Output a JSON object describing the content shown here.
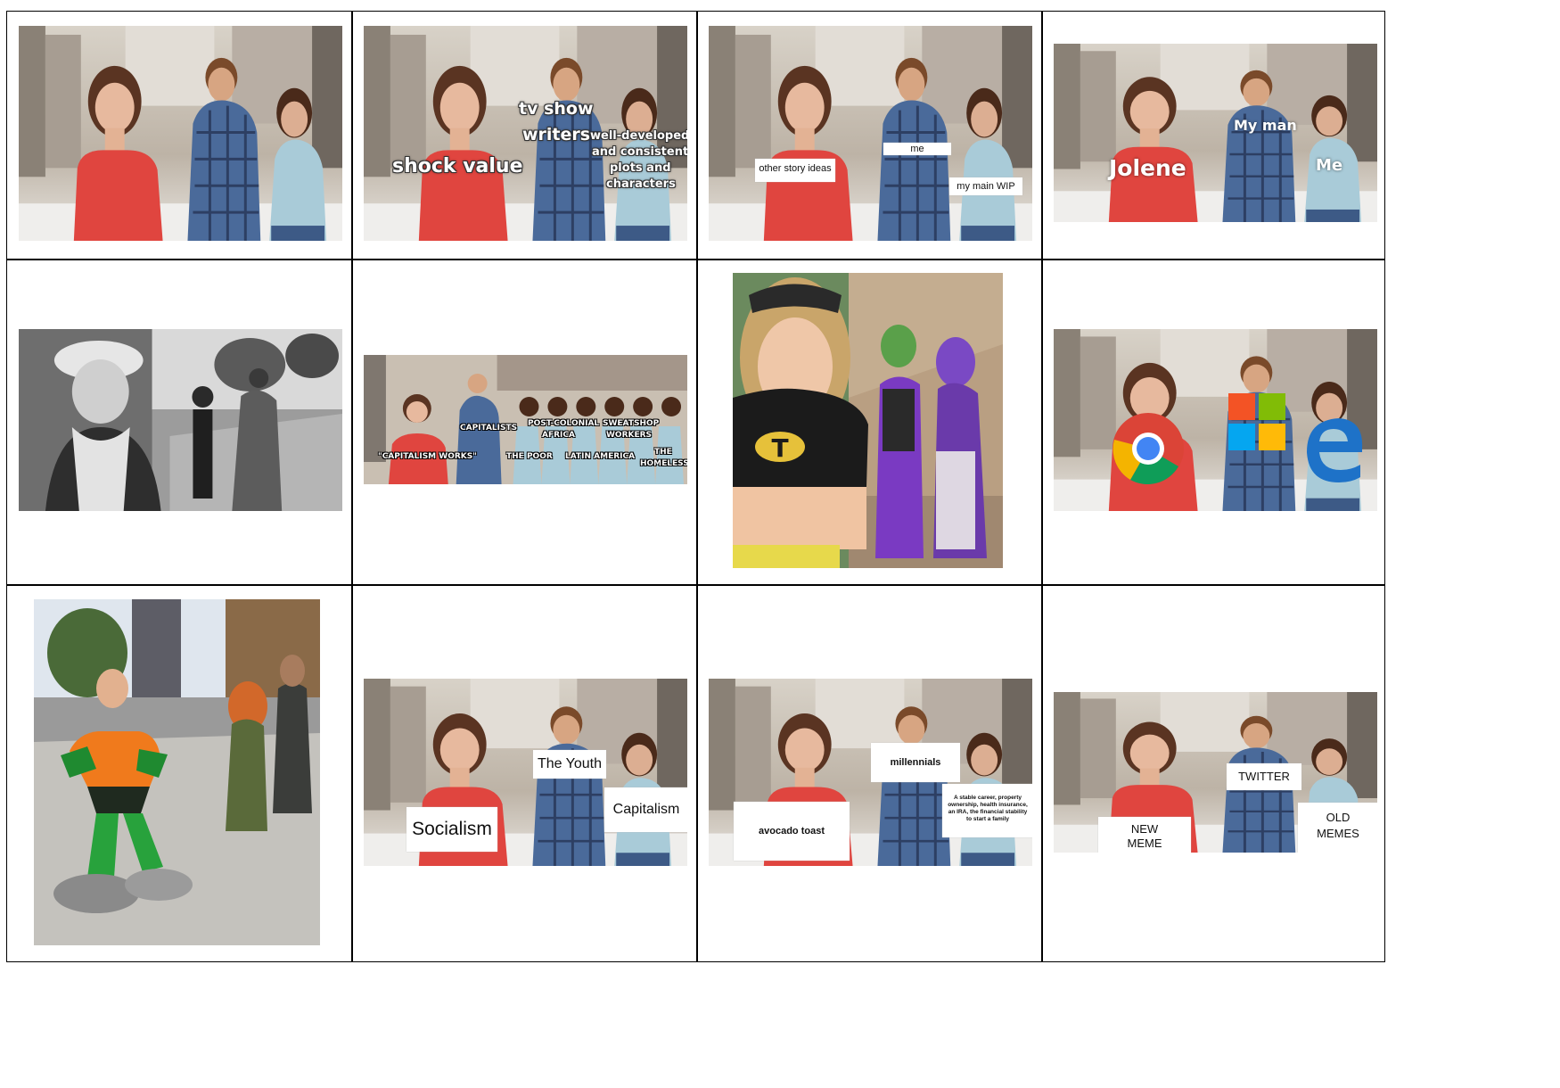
{
  "memes": [
    {
      "id": "original",
      "captions": []
    },
    {
      "id": "tv-writers",
      "captions": [
        "tv show",
        "writers",
        "shock value",
        "well-developed",
        "and consistent",
        "plots and",
        "characters"
      ]
    },
    {
      "id": "story-ideas",
      "captions": [
        "other story ideas",
        "me",
        "my main WIP"
      ]
    },
    {
      "id": "jolene",
      "captions": [
        "Jolene",
        "My man",
        "Me"
      ]
    },
    {
      "id": "chaplin",
      "captions": []
    },
    {
      "id": "capitalism",
      "captions": [
        "\"CAPITALISM WORKS\"",
        "CAPITALISTS",
        "THE POOR",
        "POST-COLONIAL",
        "AFRICA",
        "LATIN AMERICA",
        "SWEATSHOP",
        "WORKERS",
        "THE",
        "HOMELESS"
      ]
    },
    {
      "id": "titans-cosplay",
      "captions": [
        "T"
      ]
    },
    {
      "id": "browsers",
      "icons": [
        "chrome-logo-icon",
        "windows-logo-icon",
        "edge-logo-icon"
      ]
    },
    {
      "id": "aquaman-cosplay",
      "captions": []
    },
    {
      "id": "socialism",
      "captions": [
        "The Youth",
        "Socialism",
        "Capitalism"
      ]
    },
    {
      "id": "millennials",
      "captions": [
        "millennials",
        "avocado toast",
        "A stable career, property",
        "ownership, health insurance,",
        "an IRA, the financial stability",
        "to start a family"
      ]
    },
    {
      "id": "old-memes",
      "captions": [
        "TWITTER",
        "NEW",
        "MEME",
        "OLD",
        "MEMES"
      ]
    }
  ],
  "colors": {
    "red_dress": "#e0453f",
    "blue_shirt": "#4a6a9a",
    "teal_top": "#a9cbd8",
    "background_blur": "#c9bfb2"
  }
}
